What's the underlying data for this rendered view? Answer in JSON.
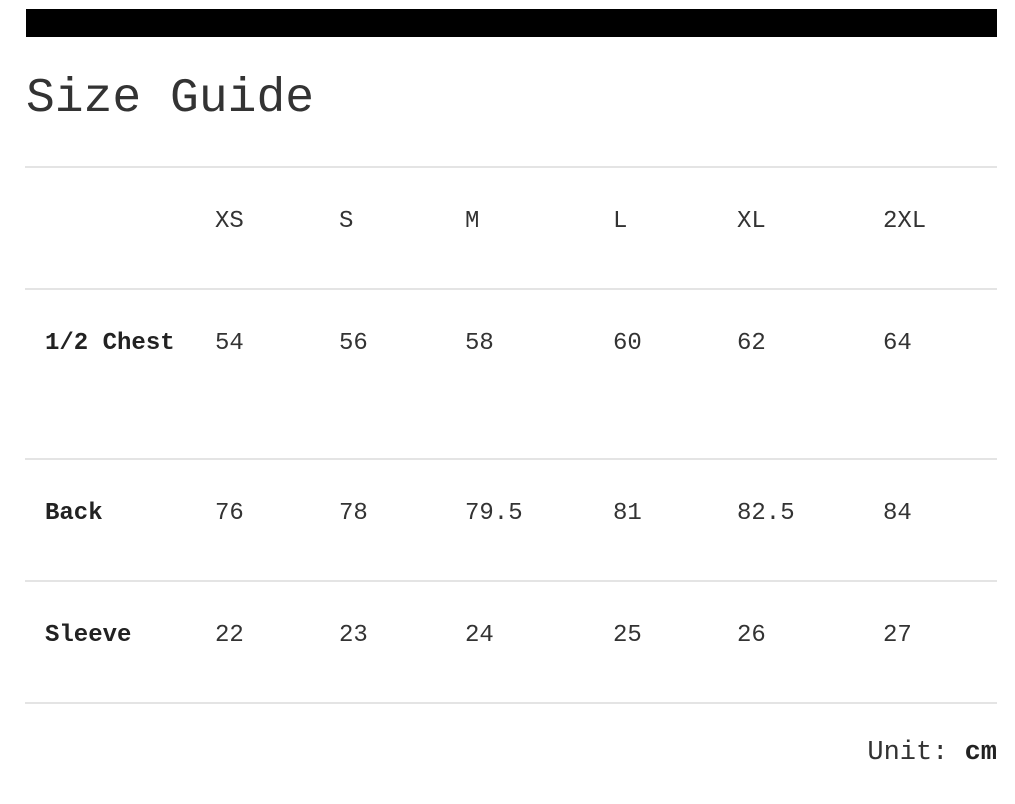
{
  "title": "Size Guide",
  "sizes": [
    "XS",
    "S",
    "M",
    "L",
    "XL",
    "2XL"
  ],
  "rows": [
    {
      "label": "1/2 Chest",
      "values": [
        "54",
        "56",
        "58",
        "60",
        "62",
        "64"
      ]
    },
    {
      "label": "Back",
      "values": [
        "76",
        "78",
        "79.5",
        "81",
        "82.5",
        "84"
      ]
    },
    {
      "label": "Sleeve",
      "values": [
        "22",
        "23",
        "24",
        "25",
        "26",
        "27"
      ]
    }
  ],
  "unit_label": "Unit:",
  "unit": "cm"
}
